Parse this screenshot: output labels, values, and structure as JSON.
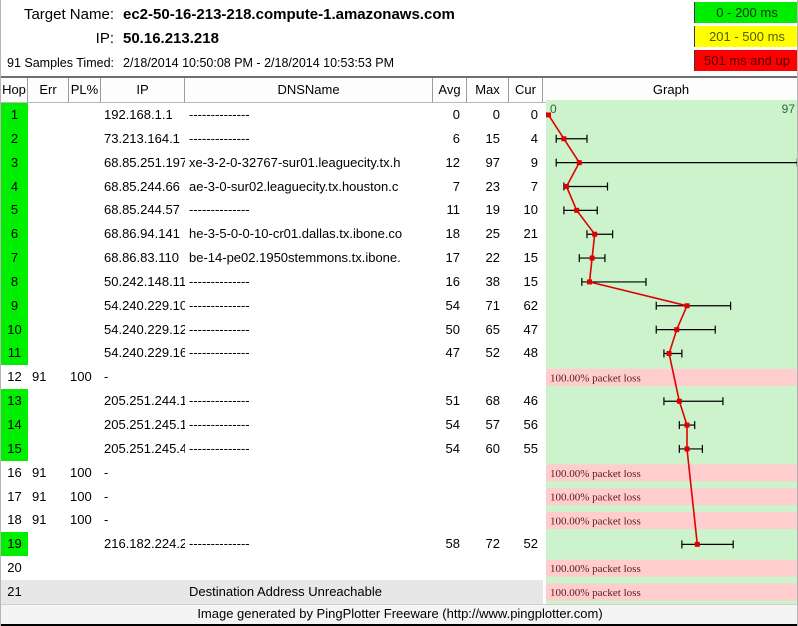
{
  "header": {
    "target_name_label": "Target Name:",
    "target_name": "ec2-50-16-213-218.compute-1.amazonaws.com",
    "ip_label": "IP:",
    "ip": "50.16.213.218",
    "samples_label": "91 Samples Timed:",
    "samples_range": "2/18/2014 10:50:08 PM - 2/18/2014 10:53:53 PM"
  },
  "legend": [
    {
      "label": "0 - 200 ms",
      "bg": "#00ee00",
      "fg": "#103010"
    },
    {
      "label": "201 - 500 ms",
      "bg": "#ffff00",
      "fg": "#5a5a00"
    },
    {
      "label": "501 ms and up",
      "bg": "#ff0000",
      "fg": "#500000"
    }
  ],
  "table": {
    "columns": [
      "Hop",
      "Err",
      "PL%",
      "IP",
      "DNSName",
      "Avg",
      "Max",
      "Cur",
      "Graph"
    ],
    "rows": [
      {
        "hop": "1",
        "err": "",
        "pl": "",
        "ip": "192.168.1.1",
        "dns": "--------------",
        "avg": "0",
        "max": "0",
        "cur": "0",
        "green": true
      },
      {
        "hop": "2",
        "err": "",
        "pl": "",
        "ip": "73.213.164.1",
        "dns": "--------------",
        "avg": "6",
        "max": "15",
        "cur": "4",
        "green": true
      },
      {
        "hop": "3",
        "err": "",
        "pl": "",
        "ip": "68.85.251.197",
        "dns": "xe-3-2-0-32767-sur01.leaguecity.tx.h",
        "avg": "12",
        "max": "97",
        "cur": "9",
        "green": true
      },
      {
        "hop": "4",
        "err": "",
        "pl": "",
        "ip": "68.85.244.66",
        "dns": "ae-3-0-sur02.leaguecity.tx.houston.c",
        "avg": "7",
        "max": "23",
        "cur": "7",
        "green": true
      },
      {
        "hop": "5",
        "err": "",
        "pl": "",
        "ip": "68.85.244.57",
        "dns": "--------------",
        "avg": "11",
        "max": "19",
        "cur": "10",
        "green": true
      },
      {
        "hop": "6",
        "err": "",
        "pl": "",
        "ip": "68.86.94.141",
        "dns": "he-3-5-0-0-10-cr01.dallas.tx.ibone.co",
        "avg": "18",
        "max": "25",
        "cur": "21",
        "green": true
      },
      {
        "hop": "7",
        "err": "",
        "pl": "",
        "ip": "68.86.83.110",
        "dns": "be-14-pe02.1950stemmons.tx.ibone.",
        "avg": "17",
        "max": "22",
        "cur": "15",
        "green": true
      },
      {
        "hop": "8",
        "err": "",
        "pl": "",
        "ip": "50.242.148.11",
        "dns": "--------------",
        "avg": "16",
        "max": "38",
        "cur": "15",
        "green": true
      },
      {
        "hop": "9",
        "err": "",
        "pl": "",
        "ip": "54.240.229.10",
        "dns": "--------------",
        "avg": "54",
        "max": "71",
        "cur": "62",
        "green": true
      },
      {
        "hop": "10",
        "err": "",
        "pl": "",
        "ip": "54.240.229.12",
        "dns": "--------------",
        "avg": "50",
        "max": "65",
        "cur": "47",
        "green": true
      },
      {
        "hop": "11",
        "err": "",
        "pl": "",
        "ip": "54.240.229.16",
        "dns": "--------------",
        "avg": "47",
        "max": "52",
        "cur": "48",
        "green": true
      },
      {
        "hop": "12",
        "err": "91",
        "pl": "100",
        "ip": "-",
        "dns": "",
        "avg": "",
        "max": "",
        "cur": "",
        "green": false
      },
      {
        "hop": "13",
        "err": "",
        "pl": "",
        "ip": "205.251.244.1",
        "dns": "--------------",
        "avg": "51",
        "max": "68",
        "cur": "46",
        "green": true
      },
      {
        "hop": "14",
        "err": "",
        "pl": "",
        "ip": "205.251.245.1",
        "dns": "--------------",
        "avg": "54",
        "max": "57",
        "cur": "56",
        "green": true
      },
      {
        "hop": "15",
        "err": "",
        "pl": "",
        "ip": "205.251.245.4",
        "dns": "--------------",
        "avg": "54",
        "max": "60",
        "cur": "55",
        "green": true
      },
      {
        "hop": "16",
        "err": "91",
        "pl": "100",
        "ip": "-",
        "dns": "",
        "avg": "",
        "max": "",
        "cur": "",
        "green": false
      },
      {
        "hop": "17",
        "err": "91",
        "pl": "100",
        "ip": "-",
        "dns": "",
        "avg": "",
        "max": "",
        "cur": "",
        "green": false
      },
      {
        "hop": "18",
        "err": "91",
        "pl": "100",
        "ip": "-",
        "dns": "",
        "avg": "",
        "max": "",
        "cur": "",
        "green": false
      },
      {
        "hop": "19",
        "err": "",
        "pl": "",
        "ip": "216.182.224.2",
        "dns": "--------------",
        "avg": "58",
        "max": "72",
        "cur": "52",
        "green": true
      },
      {
        "hop": "20",
        "err": "",
        "pl": "",
        "ip": "",
        "dns": "",
        "avg": "",
        "max": "",
        "cur": "",
        "green": false
      },
      {
        "hop": "21",
        "err": "",
        "pl": "",
        "ip": "",
        "dns": "",
        "avg": "",
        "max": "",
        "cur": "",
        "green": false,
        "special": "Destination Address Unreachable"
      }
    ]
  },
  "chart_data": {
    "type": "scatter",
    "title": "Graph",
    "x_range": [
      0,
      97
    ],
    "scale_min_label": "0",
    "scale_max_label": "97",
    "series": [
      {
        "hop": 1,
        "min": 0,
        "avg": 0,
        "max": 0
      },
      {
        "hop": 2,
        "min": 3,
        "avg": 6,
        "max": 15
      },
      {
        "hop": 3,
        "min": 3,
        "avg": 12,
        "max": 97
      },
      {
        "hop": 4,
        "min": 6,
        "avg": 7,
        "max": 23
      },
      {
        "hop": 5,
        "min": 6,
        "avg": 11,
        "max": 19
      },
      {
        "hop": 6,
        "min": 15,
        "avg": 18,
        "max": 25
      },
      {
        "hop": 7,
        "min": 12,
        "avg": 17,
        "max": 22
      },
      {
        "hop": 8,
        "min": 13,
        "avg": 16,
        "max": 38
      },
      {
        "hop": 9,
        "min": 42,
        "avg": 54,
        "max": 71
      },
      {
        "hop": 10,
        "min": 42,
        "avg": 50,
        "max": 65
      },
      {
        "hop": 11,
        "min": 45,
        "avg": 47,
        "max": 52
      },
      {
        "hop": 13,
        "min": 45,
        "avg": 51,
        "max": 68
      },
      {
        "hop": 14,
        "min": 51,
        "avg": 54,
        "max": 57
      },
      {
        "hop": 15,
        "min": 51,
        "avg": 54,
        "max": 60
      },
      {
        "hop": 19,
        "min": 52,
        "avg": 58,
        "max": 72
      }
    ],
    "loss_rows": [
      12,
      16,
      17,
      18,
      20,
      21
    ],
    "loss_label": "100.00% packet loss",
    "colors": {
      "plot_bg": "#ccf3cc",
      "loss_band": "#ffcdcd",
      "loss_text": "#5a1a1a",
      "trace_red": "#e00000",
      "whisker_black": "#000000",
      "scale_text": "#2f6b2f"
    }
  },
  "footer": {
    "text": "Image generated by PingPlotter Freeware (http://www.pingplotter.com)"
  }
}
